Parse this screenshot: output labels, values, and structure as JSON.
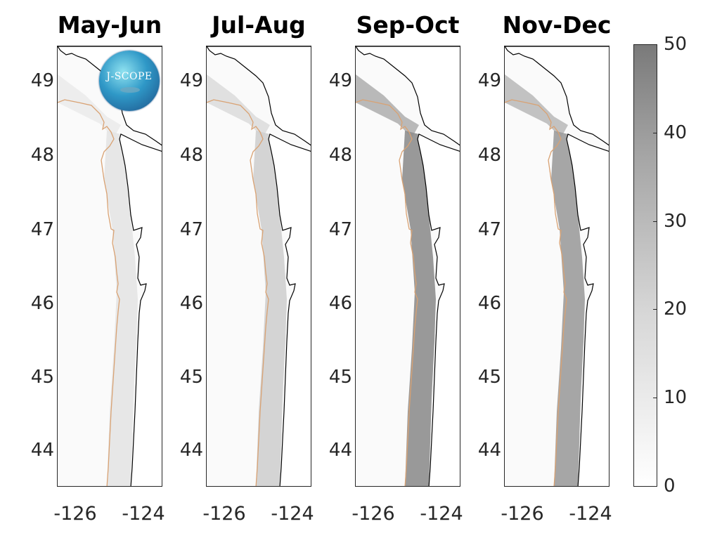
{
  "panels": [
    {
      "title": "May-Jun",
      "fill": "#e4e4e4",
      "intensity": 0.15
    },
    {
      "title": "Jul-Aug",
      "fill": "#cfcfcf",
      "intensity": 0.35
    },
    {
      "title": "Sep-Oct",
      "fill": "#8e8e8e",
      "intensity": 0.85
    },
    {
      "title": "Nov-Dec",
      "fill": "#9c9c9c",
      "intensity": 0.7
    }
  ],
  "y_axis": {
    "ticks": [
      "49",
      "48",
      "47",
      "46",
      "45",
      "44"
    ]
  },
  "x_axis": {
    "ticks": [
      "-126",
      "-124"
    ]
  },
  "colorbar": {
    "ticks": [
      "50",
      "40",
      "30",
      "20",
      "10",
      "0"
    ],
    "range": [
      0,
      50
    ]
  },
  "logo": {
    "text": "J-SCOPE"
  },
  "colors": {
    "coastline": "#000000",
    "contour": "#d9a273",
    "frame": "#262626"
  }
}
